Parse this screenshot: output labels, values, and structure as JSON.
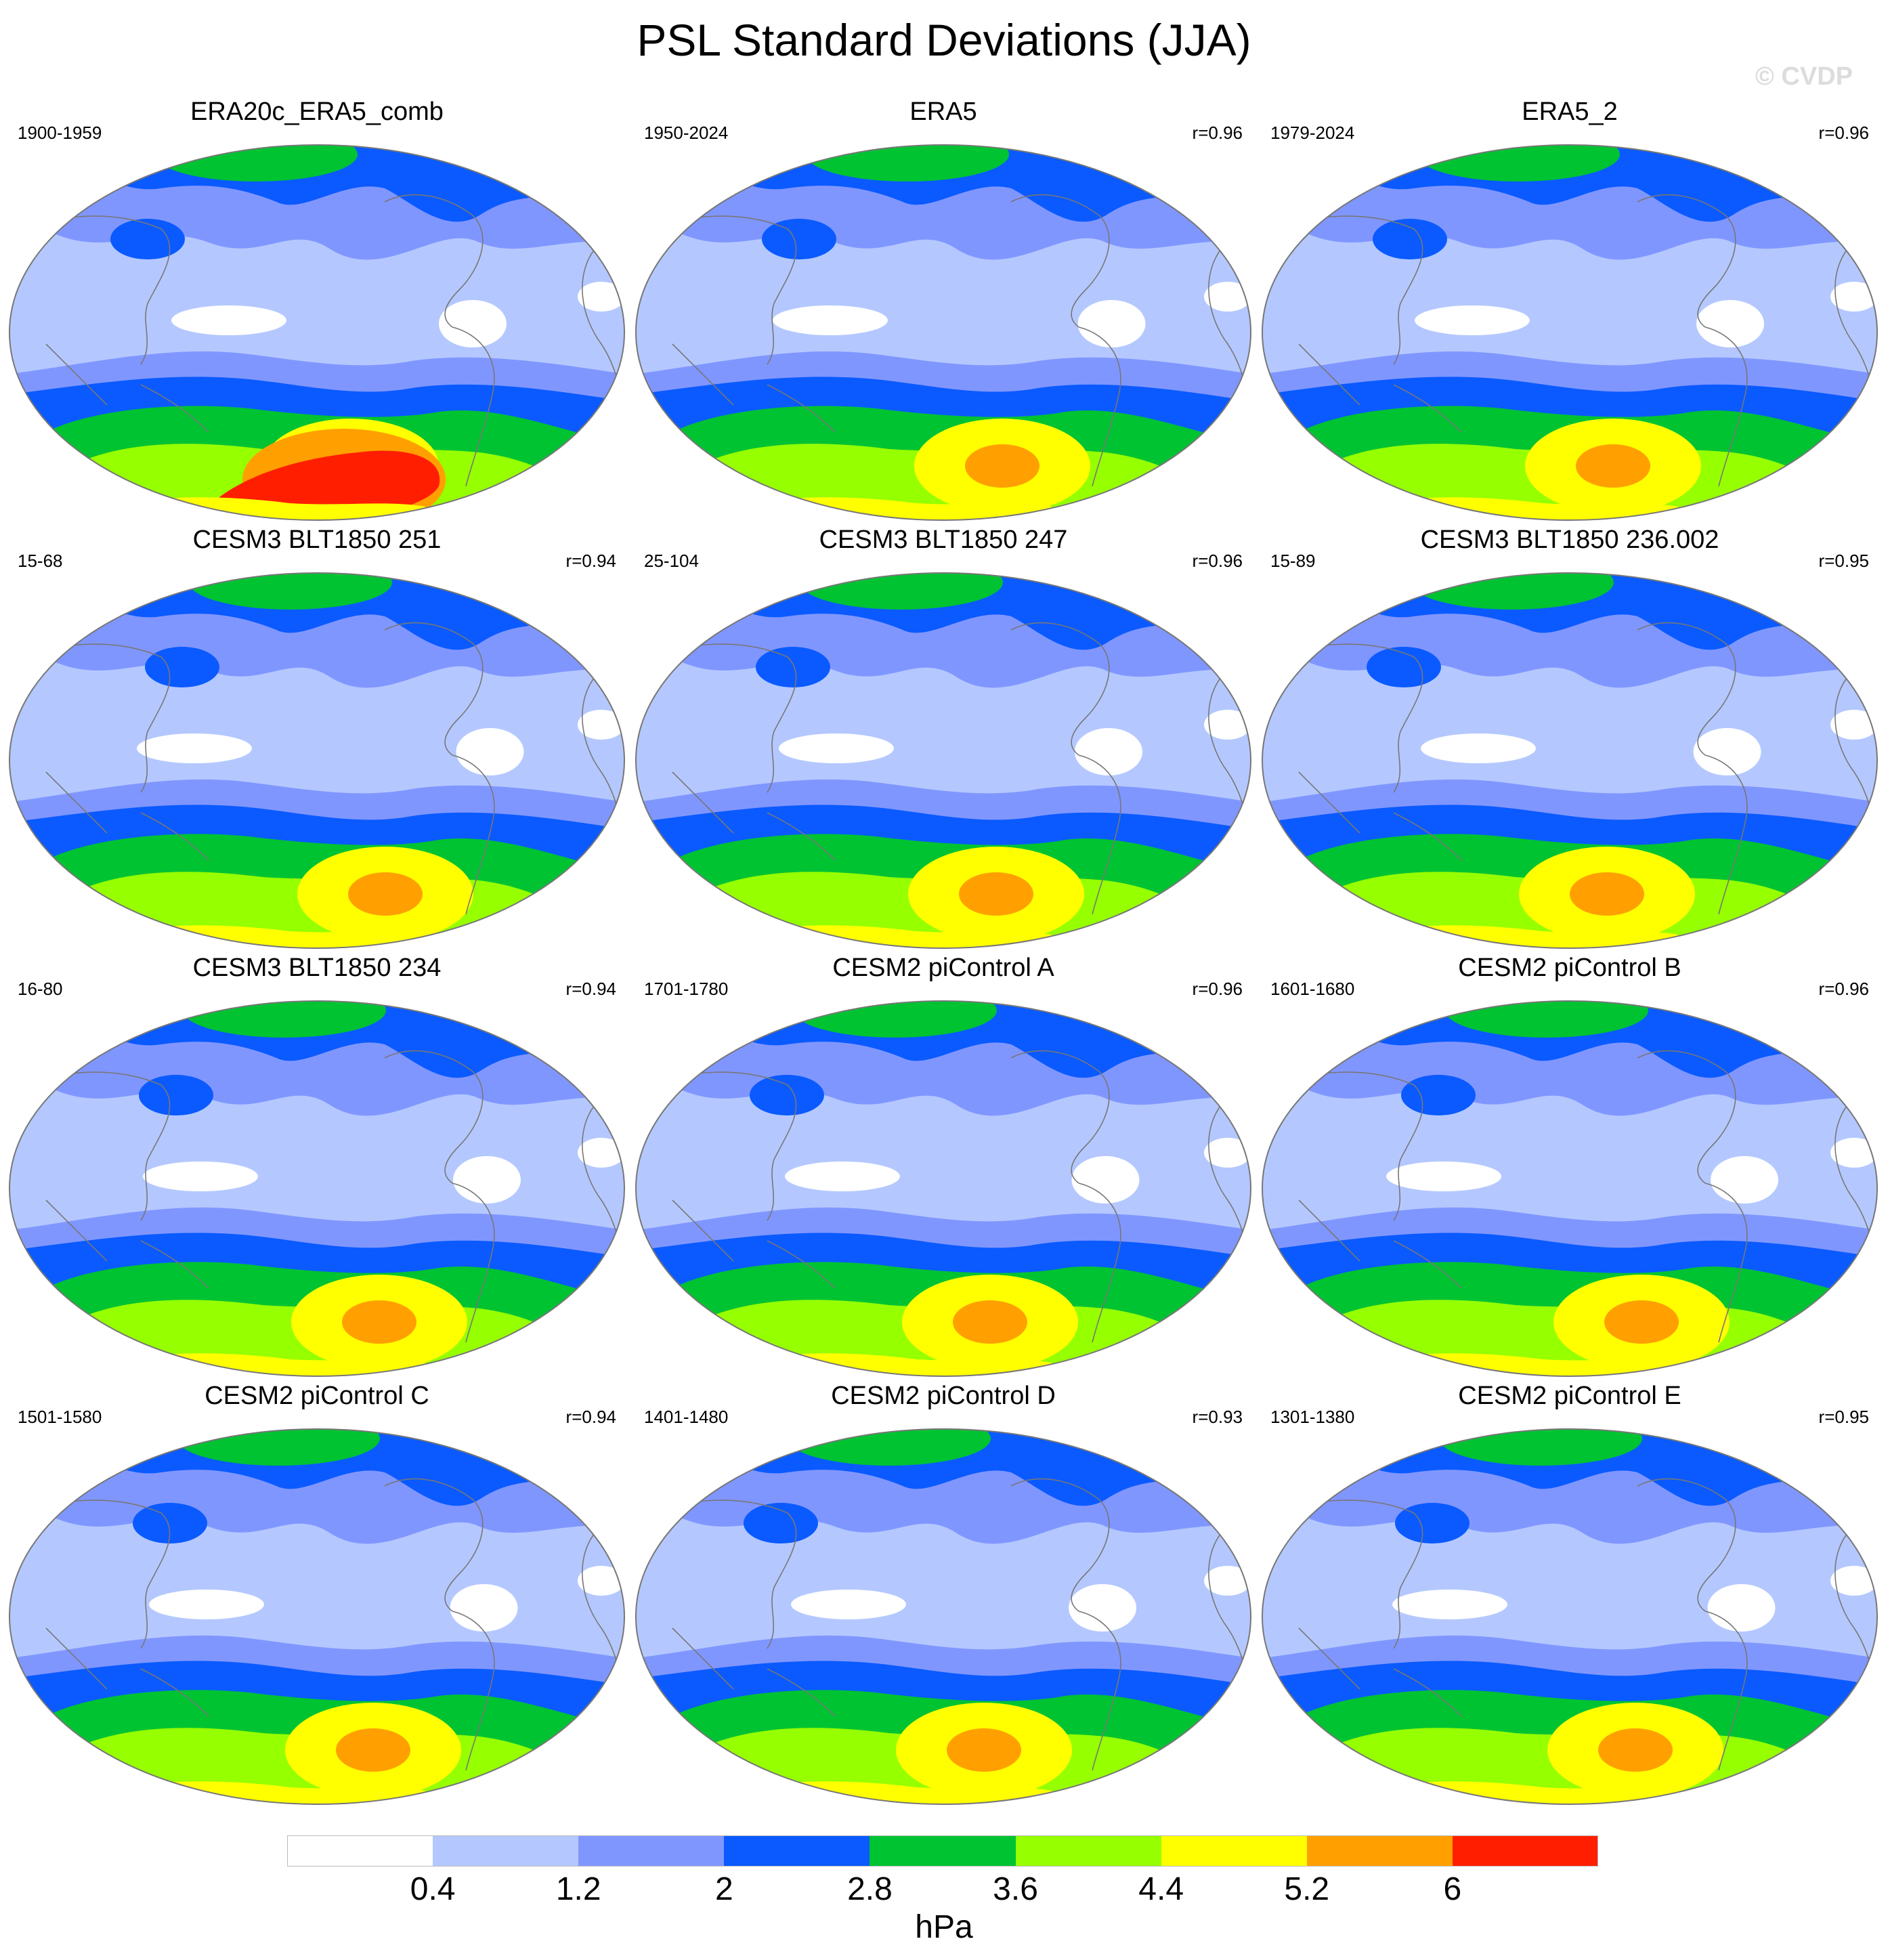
{
  "title": "PSL Standard Deviations (JJA)",
  "watermark": "© CVDP",
  "colorbar": {
    "unit": "hPa",
    "labels": [
      "0.4",
      "1.2",
      "2",
      "2.8",
      "3.6",
      "4.4",
      "5.2",
      "6"
    ],
    "colors": [
      "#ffffff",
      "#b4c8ff",
      "#8096ff",
      "#0a5aff",
      "#00c332",
      "#96ff00",
      "#ffff00",
      "#ffa000",
      "#ff1e00"
    ]
  },
  "panels": [
    {
      "title": "ERA20c_ERA5_comb",
      "years": "1900-1959",
      "r": ""
    },
    {
      "title": "ERA5",
      "years": "1950-2024",
      "r": "r=0.96"
    },
    {
      "title": "ERA5_2",
      "years": "1979-2024",
      "r": "r=0.96"
    },
    {
      "title": "CESM3 BLT1850 251",
      "years": "15-68",
      "r": "r=0.94"
    },
    {
      "title": "CESM3 BLT1850 247",
      "years": "25-104",
      "r": "r=0.96"
    },
    {
      "title": "CESM3 BLT1850 236.002",
      "years": "15-89",
      "r": "r=0.95"
    },
    {
      "title": "CESM3 BLT1850 234",
      "years": "16-80",
      "r": "r=0.94"
    },
    {
      "title": "CESM2 piControl A",
      "years": "1701-1780",
      "r": "r=0.96"
    },
    {
      "title": "CESM2 piControl B",
      "years": "1601-1680",
      "r": "r=0.96"
    },
    {
      "title": "CESM2 piControl C",
      "years": "1501-1580",
      "r": "r=0.94"
    },
    {
      "title": "CESM2 piControl D",
      "years": "1401-1480",
      "r": "r=0.93"
    },
    {
      "title": "CESM2 piControl E",
      "years": "1301-1380",
      "r": "r=0.95"
    }
  ]
}
